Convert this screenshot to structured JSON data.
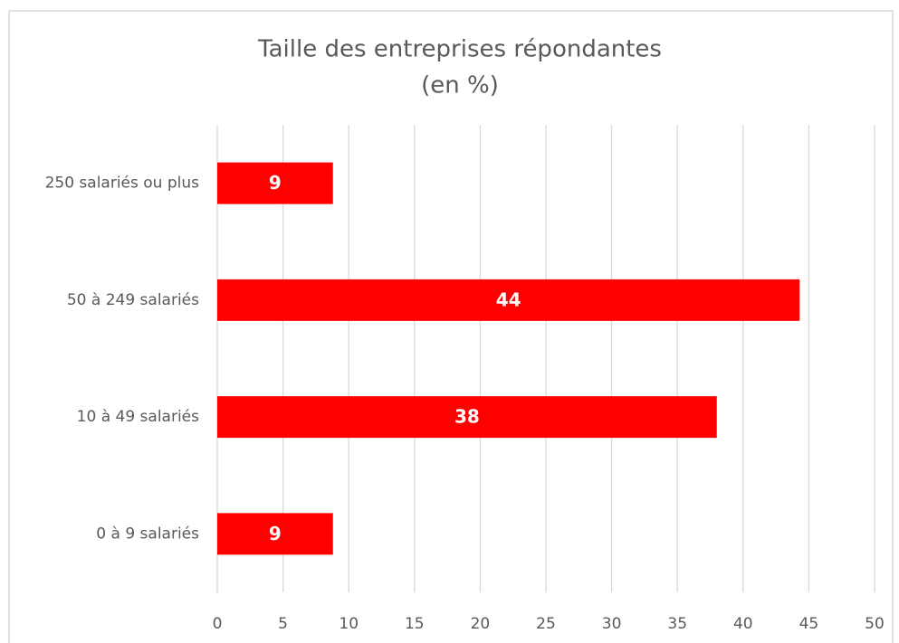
{
  "chart_data": {
    "type": "bar",
    "orientation": "horizontal",
    "title": [
      "Taille des entreprises répondantes",
      "(en %)"
    ],
    "categories": [
      "250 salariés ou plus",
      "50 à 249 salariés",
      "10 à 49 salariés",
      "0 à 9 salariés"
    ],
    "values": [
      8.8,
      44.3,
      38,
      8.8
    ],
    "value_labels": [
      "9",
      "44",
      "38",
      "9"
    ],
    "color": "#ff0000",
    "xlim": [
      0,
      50
    ],
    "xticks": [
      0,
      5,
      10,
      15,
      20,
      25,
      30,
      35,
      40,
      45,
      50
    ],
    "grid": true
  }
}
